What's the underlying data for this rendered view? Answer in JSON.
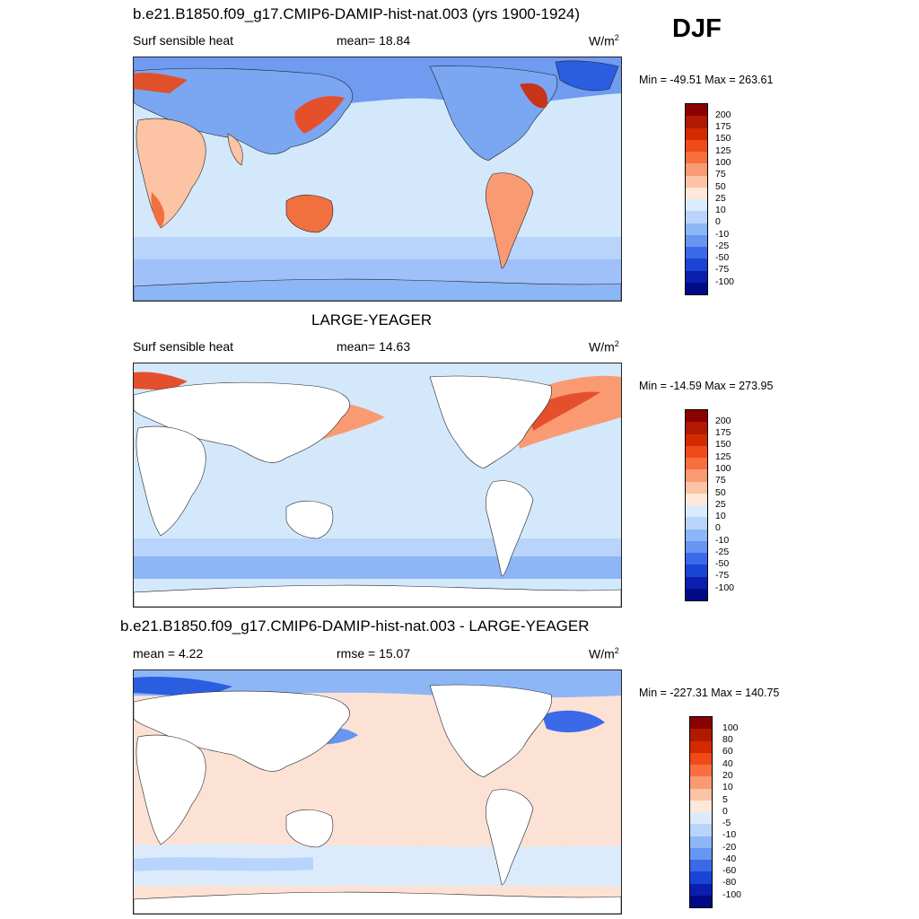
{
  "panel1": {
    "title": "b.e21.B1850.f09_g17.CMIP6-DAMIP-hist-nat.003 (yrs 1900-1924)",
    "variable": "Surf sensible heat",
    "stat": "mean=  18.84",
    "units": "W/m",
    "units_sup": "2",
    "minmax": "Min = -49.51 Max = 263.61",
    "ocean_color": "#d3e8fb",
    "legend_labels": [
      "200",
      "175",
      "150",
      "125",
      "100",
      "75",
      "50",
      "25",
      "10",
      "0",
      "-10",
      "-25",
      "-50",
      "-75",
      "-100"
    ]
  },
  "season": "DJF",
  "panel2": {
    "title": "LARGE-YEAGER",
    "variable": "Surf sensible heat",
    "stat": "mean=  14.63",
    "units": "W/m",
    "units_sup": "2",
    "minmax": "Min = -14.59 Max = 273.95",
    "ocean_color": "#d3e8fb",
    "legend_labels": [
      "200",
      "175",
      "150",
      "125",
      "100",
      "75",
      "50",
      "25",
      "10",
      "0",
      "-10",
      "-25",
      "-50",
      "-75",
      "-100"
    ]
  },
  "panel3": {
    "title": "b.e21.B1850.f09_g17.CMIP6-DAMIP-hist-nat.003 - LARGE-YEAGER",
    "stat_left": "mean =   4.22",
    "stat_mid": "rmse =  15.07",
    "units": "W/m",
    "units_sup": "2",
    "minmax": "Min = -227.31 Max = 140.75",
    "ocean_color": "#fbe2d5",
    "legend_labels": [
      "100",
      "80",
      "60",
      "40",
      "20",
      "10",
      "5",
      "0",
      "-5",
      "-10",
      "-20",
      "-40",
      "-60",
      "-80",
      "-100"
    ]
  },
  "colorbar_colors": [
    "#8b0000",
    "#b01a00",
    "#d42a00",
    "#f04a18",
    "#f76f3f",
    "#fa9a72",
    "#fcc3a4",
    "#fde8da",
    "#dbebfb",
    "#b9d4fb",
    "#8db6f7",
    "#6795f2",
    "#3b6ae8",
    "#1a44d3",
    "#0a1fb0",
    "#010a86"
  ]
}
